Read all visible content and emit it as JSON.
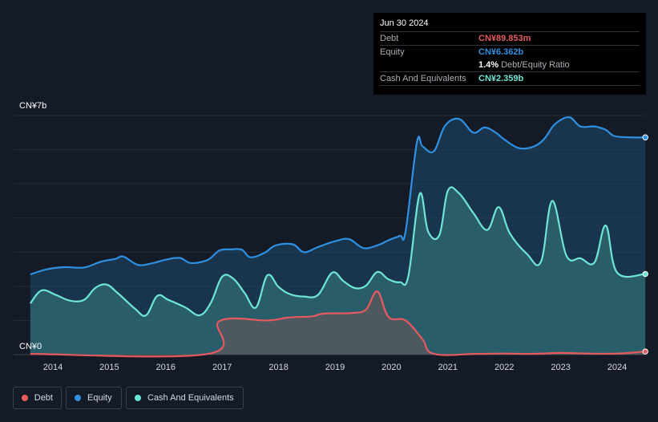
{
  "tooltip": {
    "date": "Jun 30 2024",
    "debt_label": "Debt",
    "debt_value": "CN¥89.853m",
    "equity_label": "Equity",
    "equity_value": "CN¥6.362b",
    "ratio_value": "1.4%",
    "ratio_label": "Debt/Equity Ratio",
    "cash_label": "Cash And Equivalents",
    "cash_value": "CN¥2.359b"
  },
  "legend": {
    "debt": "Debt",
    "equity": "Equity",
    "cash": "Cash And Equivalents"
  },
  "colors": {
    "debt": "#e55a5f",
    "equity": "#2f8fe0",
    "cash": "#6ee5d5",
    "background": "#151b26"
  },
  "chart_data": {
    "type": "area",
    "title": "",
    "xlabel": "",
    "ylabel": "",
    "y_unit_label_top": "CN¥7b",
    "y_unit_label_bottom": "CN¥0",
    "ylim": [
      0,
      7
    ],
    "xlim": [
      2013.6,
      2024.5
    ],
    "x_ticks": [
      "2014",
      "2015",
      "2016",
      "2017",
      "2018",
      "2019",
      "2020",
      "2021",
      "2022",
      "2023",
      "2024"
    ],
    "series": [
      {
        "name": "Equity",
        "points": [
          [
            2013.6,
            2.35
          ],
          [
            2013.9,
            2.5
          ],
          [
            2014.2,
            2.56
          ],
          [
            2014.55,
            2.55
          ],
          [
            2014.85,
            2.72
          ],
          [
            2015.1,
            2.8
          ],
          [
            2015.25,
            2.87
          ],
          [
            2015.5,
            2.63
          ],
          [
            2015.75,
            2.67
          ],
          [
            2016.0,
            2.78
          ],
          [
            2016.25,
            2.83
          ],
          [
            2016.45,
            2.68
          ],
          [
            2016.75,
            2.78
          ],
          [
            2016.95,
            3.05
          ],
          [
            2017.15,
            3.08
          ],
          [
            2017.35,
            3.07
          ],
          [
            2017.5,
            2.85
          ],
          [
            2017.75,
            2.98
          ],
          [
            2017.95,
            3.2
          ],
          [
            2018.25,
            3.23
          ],
          [
            2018.45,
            3.0
          ],
          [
            2018.7,
            3.15
          ],
          [
            2019.0,
            3.32
          ],
          [
            2019.25,
            3.38
          ],
          [
            2019.5,
            3.12
          ],
          [
            2019.75,
            3.2
          ],
          [
            2019.95,
            3.35
          ],
          [
            2020.15,
            3.48
          ],
          [
            2020.25,
            3.6
          ],
          [
            2020.45,
            6.2
          ],
          [
            2020.55,
            6.1
          ],
          [
            2020.75,
            5.95
          ],
          [
            2020.95,
            6.7
          ],
          [
            2021.2,
            6.9
          ],
          [
            2021.45,
            6.5
          ],
          [
            2021.65,
            6.65
          ],
          [
            2021.85,
            6.5
          ],
          [
            2022.0,
            6.3
          ],
          [
            2022.25,
            6.05
          ],
          [
            2022.5,
            6.08
          ],
          [
            2022.7,
            6.3
          ],
          [
            2022.9,
            6.75
          ],
          [
            2023.15,
            6.95
          ],
          [
            2023.35,
            6.68
          ],
          [
            2023.6,
            6.68
          ],
          [
            2023.8,
            6.58
          ],
          [
            2023.95,
            6.4
          ],
          [
            2024.25,
            6.36
          ],
          [
            2024.5,
            6.36
          ]
        ]
      },
      {
        "name": "Cash And Equivalents",
        "points": [
          [
            2013.6,
            1.5
          ],
          [
            2013.8,
            1.88
          ],
          [
            2014.05,
            1.75
          ],
          [
            2014.3,
            1.58
          ],
          [
            2014.55,
            1.6
          ],
          [
            2014.75,
            1.95
          ],
          [
            2014.95,
            2.05
          ],
          [
            2015.15,
            1.8
          ],
          [
            2015.45,
            1.35
          ],
          [
            2015.65,
            1.15
          ],
          [
            2015.85,
            1.72
          ],
          [
            2016.05,
            1.6
          ],
          [
            2016.35,
            1.38
          ],
          [
            2016.6,
            1.15
          ],
          [
            2016.8,
            1.52
          ],
          [
            2017.0,
            2.28
          ],
          [
            2017.2,
            2.22
          ],
          [
            2017.4,
            1.8
          ],
          [
            2017.6,
            1.38
          ],
          [
            2017.8,
            2.32
          ],
          [
            2018.0,
            1.98
          ],
          [
            2018.2,
            1.77
          ],
          [
            2018.45,
            1.7
          ],
          [
            2018.7,
            1.75
          ],
          [
            2018.95,
            2.4
          ],
          [
            2019.15,
            2.15
          ],
          [
            2019.35,
            1.95
          ],
          [
            2019.55,
            2.02
          ],
          [
            2019.75,
            2.42
          ],
          [
            2019.95,
            2.2
          ],
          [
            2020.15,
            2.12
          ],
          [
            2020.3,
            2.3
          ],
          [
            2020.5,
            4.7
          ],
          [
            2020.65,
            3.6
          ],
          [
            2020.85,
            3.5
          ],
          [
            2021.0,
            4.8
          ],
          [
            2021.2,
            4.72
          ],
          [
            2021.45,
            4.15
          ],
          [
            2021.7,
            3.65
          ],
          [
            2021.9,
            4.32
          ],
          [
            2022.1,
            3.55
          ],
          [
            2022.4,
            2.95
          ],
          [
            2022.65,
            2.72
          ],
          [
            2022.85,
            4.5
          ],
          [
            2023.1,
            2.9
          ],
          [
            2023.35,
            2.82
          ],
          [
            2023.6,
            2.7
          ],
          [
            2023.8,
            3.78
          ],
          [
            2024.0,
            2.4
          ],
          [
            2024.5,
            2.36
          ]
        ]
      },
      {
        "name": "Debt",
        "points": [
          [
            2013.6,
            0.02
          ],
          [
            2016.75,
            0.02
          ],
          [
            2016.95,
            0.98
          ],
          [
            2017.8,
            1.0
          ],
          [
            2018.1,
            1.07
          ],
          [
            2018.3,
            1.1
          ],
          [
            2018.6,
            1.12
          ],
          [
            2018.8,
            1.2
          ],
          [
            2019.3,
            1.22
          ],
          [
            2019.55,
            1.32
          ],
          [
            2019.75,
            1.85
          ],
          [
            2019.95,
            1.1
          ],
          [
            2020.25,
            1.0
          ],
          [
            2020.55,
            0.45
          ],
          [
            2020.75,
            0.02
          ],
          [
            2021.5,
            0.02
          ],
          [
            2022.0,
            0.03
          ],
          [
            2022.5,
            0.02
          ],
          [
            2023.0,
            0.05
          ],
          [
            2023.5,
            0.03
          ],
          [
            2024.0,
            0.03
          ],
          [
            2024.5,
            0.09
          ]
        ]
      }
    ],
    "legend_position": "bottom-left",
    "grid": true
  }
}
